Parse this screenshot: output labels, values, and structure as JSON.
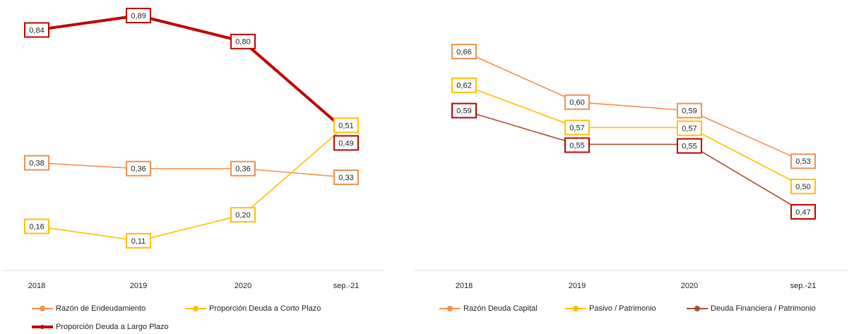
{
  "chart_data": [
    {
      "type": "line",
      "categories": [
        "2018",
        "2019",
        "2020",
        "sep.-21"
      ],
      "series": [
        {
          "name": "Razón de Endeudamiento",
          "color": "#f0914f",
          "label_color": "#f0914f",
          "values": [
            0.38,
            0.36,
            0.36,
            0.33
          ],
          "value_labels": [
            "0,38",
            "0,36",
            "0,36",
            "0,33"
          ]
        },
        {
          "name": "Proporción Deuda a Corto Plazo",
          "color": "#ffc000",
          "label_color": "#ffc000",
          "values": [
            0.16,
            0.11,
            0.2,
            0.51
          ],
          "value_labels": [
            "0,16",
            "0,11",
            "0,20",
            "0,51"
          ]
        },
        {
          "name": "Proporción Deuda a Largo Plazo",
          "color": "#c00000",
          "label_color": "#c00000",
          "values": [
            0.84,
            0.89,
            0.8,
            0.49
          ],
          "value_labels": [
            "0,84",
            "0,89",
            "0,80",
            "0,49"
          ]
        }
      ]
    },
    {
      "type": "line",
      "categories": [
        "2018",
        "2019",
        "2020",
        "sep.-21"
      ],
      "series": [
        {
          "name": "Razón Deuda Capital",
          "color": "#f0914f",
          "label_color": "#f0914f",
          "values": [
            0.66,
            0.6,
            0.59,
            0.53
          ],
          "value_labels": [
            "0,66",
            "0,60",
            "0,59",
            "0,53"
          ]
        },
        {
          "name": "Pasivo / Patrimonio",
          "color": "#ffc000",
          "label_color": "#ffc000",
          "values": [
            0.62,
            0.57,
            0.57,
            0.5
          ],
          "value_labels": [
            "0,62",
            "0,57",
            "0,57",
            "0,50"
          ]
        },
        {
          "name": "Deuda Financiera / Patrimonio",
          "color": "#a5522a",
          "label_color": "#c00000",
          "values": [
            0.59,
            0.55,
            0.55,
            0.47
          ],
          "value_labels": [
            "0,59",
            "0,55",
            "0,55",
            "0,47"
          ]
        }
      ]
    }
  ]
}
